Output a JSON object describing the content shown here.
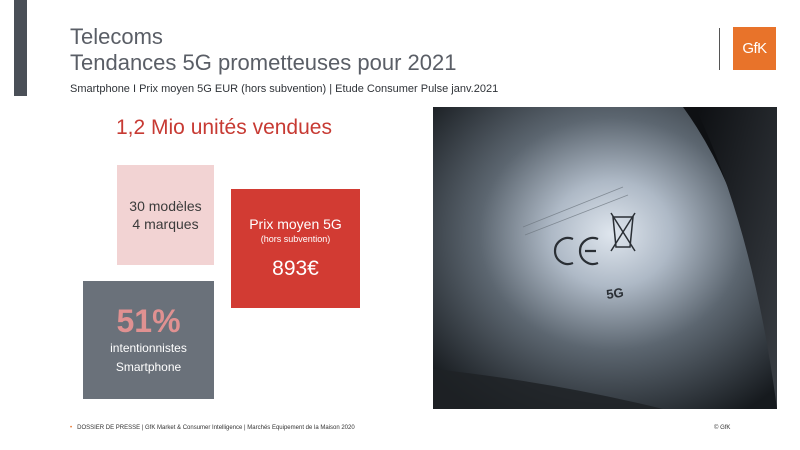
{
  "header": {
    "title_line1": "Telecoms",
    "title_line2": "Tendances 5G prometteuses pour 2021",
    "subtitle": "Smartphone I Prix moyen 5G EUR (hors subvention) | Etude Consumer Pulse janv.2021",
    "logo_text": "GfK"
  },
  "headline": "1,2 Mio unités vendues",
  "models_box": {
    "line1": "30 modèles",
    "line2": "4 marques"
  },
  "price_box": {
    "label": "Prix moyen 5G",
    "sublabel": "(hors subvention)",
    "value": "893€"
  },
  "intent_box": {
    "percent": "51%",
    "line1": "intentionnistes",
    "line2": "Smartphone"
  },
  "photo": {
    "marking": "5G"
  },
  "footer": {
    "text": "DOSSIER DE PRESSE | GfK Market & Consumer Intelligence | Marchés Equipement de la Maison 2020",
    "copyright": "© GfK"
  },
  "colors": {
    "accent_red": "#d23b33",
    "logo_orange": "#e8732a",
    "pink": "#f2d3d3",
    "slate": "#6a717a"
  }
}
